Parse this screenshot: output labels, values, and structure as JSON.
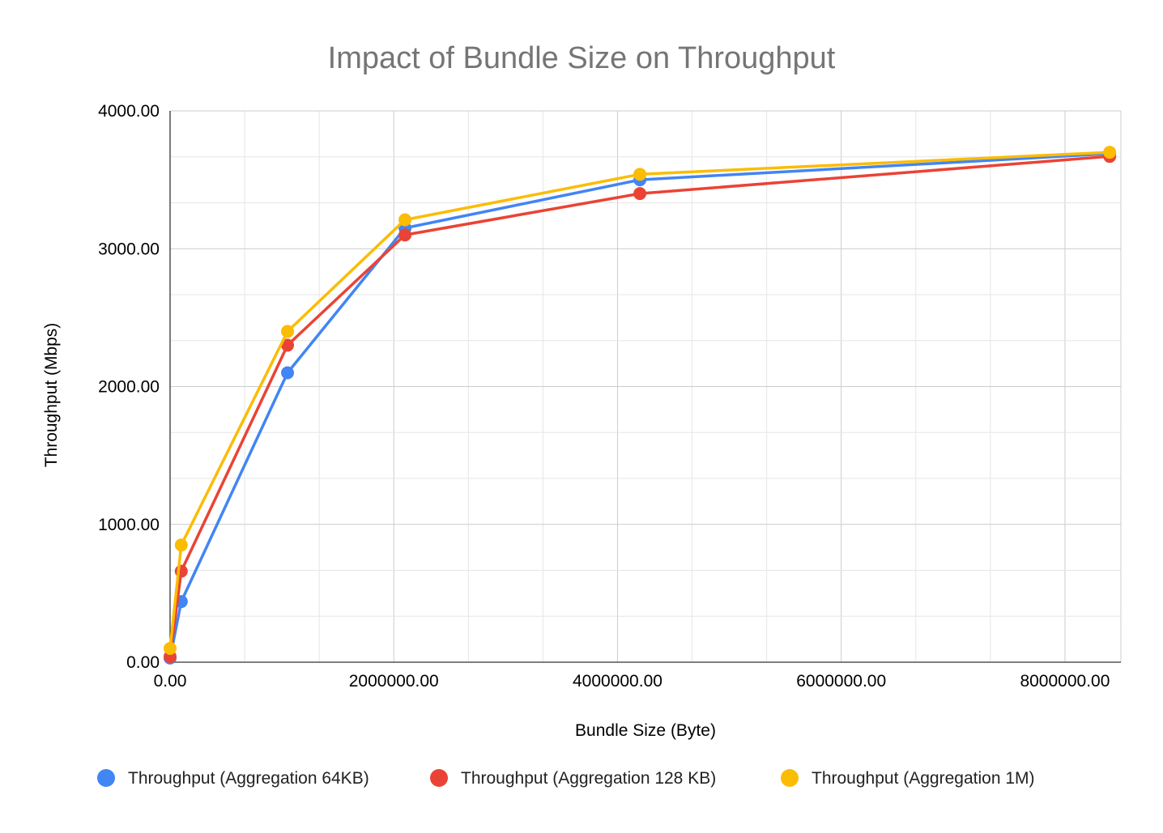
{
  "chart_data": {
    "type": "line",
    "title": "Impact of Bundle Size on Throughput",
    "xlabel": "Bundle Size (Byte)",
    "ylabel": "Throughput (Mbps)",
    "xlim": [
      0,
      8500000
    ],
    "ylim": [
      0,
      4000
    ],
    "xticks": [
      "0.00",
      "2000000.00",
      "4000000.00",
      "6000000.00",
      "8000000.00"
    ],
    "yticks": [
      "0.00",
      "1000.00",
      "2000.00",
      "3000.00",
      "4000.00"
    ],
    "grid": true,
    "legend_position": "bottom",
    "series": [
      {
        "name": "Throughput (Aggregation 64KB)",
        "color": "#4285F4",
        "x": [
          0,
          100000,
          1050000,
          2100000,
          4200000,
          8400000
        ],
        "y": [
          30,
          440,
          2100,
          3150,
          3500,
          3690
        ]
      },
      {
        "name": "Throughput (Aggregation 128 KB)",
        "color": "#EA4335",
        "x": [
          0,
          100000,
          1050000,
          2100000,
          4200000,
          8400000
        ],
        "y": [
          40,
          660,
          2300,
          3100,
          3400,
          3670
        ]
      },
      {
        "name": "Throughput (Aggregation 1M)",
        "color": "#FBBC04",
        "x": [
          0,
          100000,
          1050000,
          2100000,
          4200000,
          8400000
        ],
        "y": [
          100,
          850,
          2400,
          3210,
          3540,
          3700
        ]
      }
    ]
  }
}
